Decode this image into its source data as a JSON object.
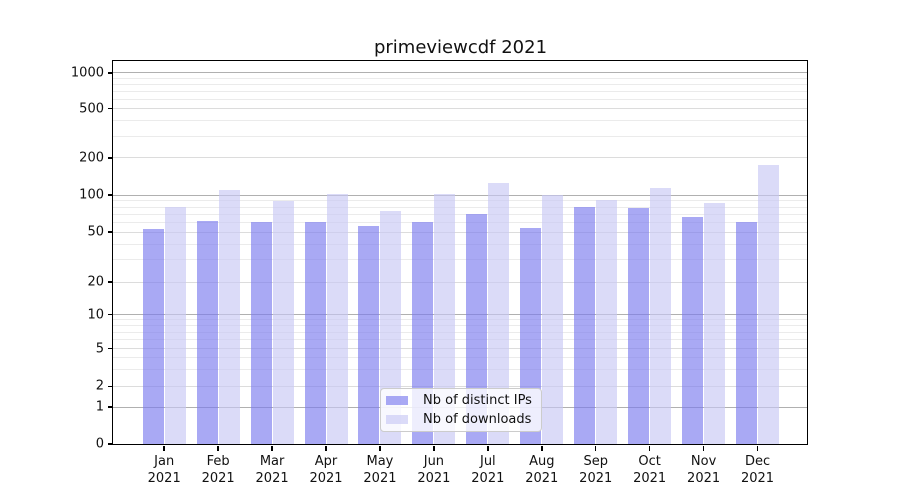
{
  "chart_data": {
    "type": "bar",
    "title": "primeviewcdf 2021",
    "categories": [
      "Jan 2021",
      "Feb 2021",
      "Mar 2021",
      "Apr 2021",
      "May 2021",
      "Jun 2021",
      "Jul 2021",
      "Aug 2021",
      "Sep 2021",
      "Oct 2021",
      "Nov 2021",
      "Dec 2021"
    ],
    "series": [
      {
        "name": "Nb of distinct IPs",
        "color": "#7b7bee",
        "values": [
          53,
          62,
          60,
          60,
          56,
          61,
          70,
          54,
          80,
          79,
          66,
          60
        ]
      },
      {
        "name": "Nb of downloads",
        "color": "#c8c8f4",
        "values": [
          80,
          110,
          89,
          102,
          74,
          102,
          126,
          100,
          92,
          115,
          86,
          176
        ]
      }
    ],
    "xlabel": "",
    "ylabel": "",
    "yscale": "symlog",
    "yticks": [
      0,
      1,
      2,
      5,
      10,
      20,
      50,
      100,
      200,
      500,
      1000
    ],
    "ylim": [
      0,
      1300
    ],
    "grid": true,
    "legend_position": "lower center",
    "colors": {
      "grid_major": "#b0b0b0",
      "grid_mid": "#dcdcdc",
      "grid_minor": "#ebebeb",
      "spine": "#000000",
      "text": "#111111"
    }
  }
}
